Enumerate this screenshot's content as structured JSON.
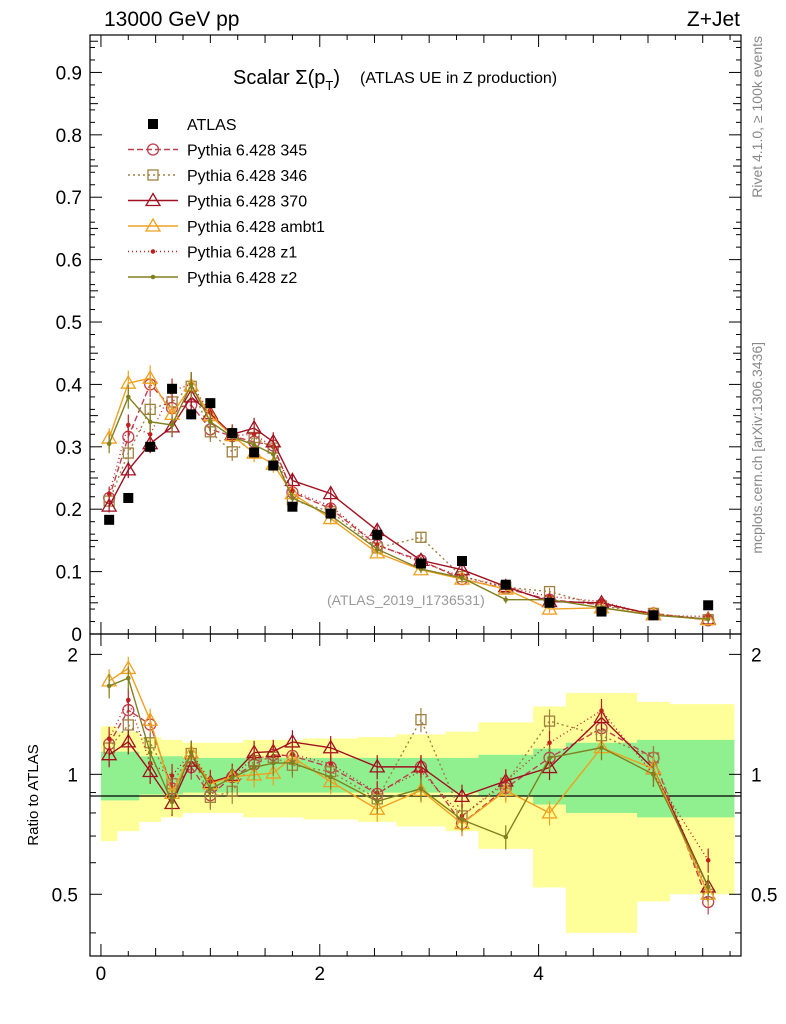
{
  "header": {
    "left": "13000 GeV pp",
    "right": "Z+Jet"
  },
  "side_labels": {
    "rivet": "Rivet 4.1.0, ≥ 100k events",
    "mcplots": "mcplots.cern.ch [arXiv:1306.3436]"
  },
  "chart_data": {
    "type": "line",
    "title_main": "Scalar Σ(p",
    "title_sub": "T",
    "title_close": ")",
    "title_tail": "(ATLAS UE in Z production)",
    "analysis_tag": "(ATLAS_2019_I1736531)",
    "xlim": [
      -0.1,
      5.85
    ],
    "ylim": [
      0,
      0.96
    ],
    "ratio_ylabel": "Ratio to ATLAS",
    "ratio_ylim": [
      0.35,
      2.25
    ],
    "xticks": [
      "0",
      "2",
      "4"
    ],
    "yticks": [
      "0",
      "0.1",
      "0.2",
      "0.3",
      "0.4",
      "0.5",
      "0.6",
      "0.7",
      "0.8",
      "0.9"
    ],
    "ratio_yticks": [
      "0.5",
      "1",
      "2"
    ],
    "x": [
      0.075,
      0.25,
      0.45,
      0.65,
      0.825,
      1.0,
      1.2,
      1.4,
      1.575,
      1.75,
      2.1,
      2.525,
      2.925,
      3.3,
      3.7,
      4.1,
      4.575,
      5.05,
      5.55
    ],
    "data": {
      "name": "ATLAS",
      "values": [
        0.183,
        0.218,
        0.3,
        0.393,
        0.352,
        0.37,
        0.322,
        0.291,
        0.27,
        0.204,
        0.193,
        0.159,
        0.113,
        0.117,
        0.079,
        0.05,
        0.036,
        0.03,
        0.046
      ]
    },
    "ratio_band_inner": [
      0.14,
      0.14,
      0.11,
      0.11,
      0.1,
      0.1,
      0.1,
      0.1,
      0.1,
      0.1,
      0.1,
      0.1,
      0.1,
      0.1,
      0.12,
      0.16,
      0.2,
      0.22,
      0.22
    ],
    "ratio_band_outer": [
      0.32,
      0.28,
      0.24,
      0.22,
      0.2,
      0.2,
      0.2,
      0.22,
      0.22,
      0.22,
      0.23,
      0.24,
      0.26,
      0.28,
      0.35,
      0.48,
      0.6,
      0.52,
      0.5
    ],
    "series": [
      {
        "name": "Pythia 6.428 345",
        "color": "#c04050",
        "dash": "6,3",
        "marker": "circle",
        "values": [
          0.218,
          0.316,
          0.4,
          0.362,
          0.367,
          0.328,
          0.317,
          0.308,
          0.302,
          0.227,
          0.201,
          0.142,
          0.118,
          0.088,
          0.073,
          0.055,
          0.047,
          0.033,
          0.022
        ]
      },
      {
        "name": "Pythia 6.428 346",
        "color": "#a08040",
        "dash": "2,3",
        "marker": "square",
        "values": [
          0.213,
          0.29,
          0.36,
          0.372,
          0.397,
          0.324,
          0.292,
          0.315,
          0.298,
          0.215,
          0.196,
          0.138,
          0.155,
          0.092,
          0.075,
          0.068,
          0.045,
          0.033,
          0.023
        ]
      },
      {
        "name": "Pythia 6.428 370",
        "color": "#a01020",
        "dash": "",
        "marker": "triangle",
        "values": [
          0.205,
          0.263,
          0.305,
          0.332,
          0.38,
          0.353,
          0.32,
          0.33,
          0.308,
          0.246,
          0.225,
          0.166,
          0.118,
          0.103,
          0.076,
          0.052,
          0.05,
          0.031,
          0.024
        ]
      },
      {
        "name": "Pythia 6.428 ambt1",
        "color": "#f0a020",
        "dash": "",
        "marker": "tri-open",
        "values": [
          0.314,
          0.402,
          0.41,
          0.352,
          0.398,
          0.35,
          0.318,
          0.29,
          0.272,
          0.225,
          0.185,
          0.13,
          0.103,
          0.088,
          0.072,
          0.04,
          0.042,
          0.031,
          0.023
        ]
      },
      {
        "name": "Pythia 6.428 z1",
        "color": "#c02020",
        "dash": "1,3",
        "marker": "dot",
        "values": [
          0.225,
          0.335,
          0.32,
          0.39,
          0.4,
          0.355,
          0.318,
          0.32,
          0.3,
          0.229,
          0.205,
          0.143,
          0.115,
          0.092,
          0.076,
          0.06,
          0.052,
          0.03,
          0.028
        ]
      },
      {
        "name": "Pythia 6.428 z2",
        "color": "#808020",
        "dash": "",
        "marker": "dot",
        "values": [
          0.305,
          0.38,
          0.34,
          0.335,
          0.4,
          0.34,
          0.316,
          0.303,
          0.288,
          0.218,
          0.19,
          0.136,
          0.104,
          0.09,
          0.055,
          0.055,
          0.042,
          0.03,
          0.024
        ]
      }
    ]
  }
}
